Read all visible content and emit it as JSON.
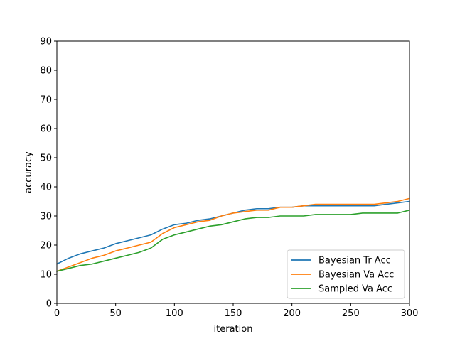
{
  "chart_data": {
    "type": "line",
    "title": "",
    "xlabel": "iteration",
    "ylabel": "accuracy",
    "xlim": [
      0,
      300
    ],
    "ylim": [
      0,
      90
    ],
    "xticks": [
      0,
      50,
      100,
      150,
      200,
      250,
      300
    ],
    "yticks": [
      0,
      10,
      20,
      30,
      40,
      50,
      60,
      70,
      80,
      90
    ],
    "grid": false,
    "legend_position": "lower-right",
    "x": [
      0,
      10,
      20,
      30,
      40,
      50,
      60,
      70,
      80,
      90,
      100,
      110,
      120,
      130,
      140,
      150,
      160,
      170,
      180,
      190,
      200,
      210,
      220,
      230,
      240,
      250,
      260,
      270,
      280,
      290,
      300
    ],
    "series": [
      {
        "name": "Bayesian Tr Acc",
        "color": "#1f77b4",
        "values": [
          13.5,
          15.5,
          17,
          18,
          19,
          20.5,
          21.5,
          22.5,
          23.5,
          25.5,
          27,
          27.5,
          28.5,
          29,
          30,
          31,
          32,
          32.5,
          32.5,
          33,
          33,
          33.5,
          33.5,
          33.5,
          33.5,
          33.5,
          33.5,
          33.5,
          34,
          34.5,
          35
        ]
      },
      {
        "name": "Bayesian Va Acc",
        "color": "#ff7f0e",
        "values": [
          11,
          12.5,
          14,
          15.5,
          16.5,
          18,
          19,
          20,
          21,
          24,
          26,
          27,
          28,
          28.5,
          30,
          31,
          31.5,
          32,
          32,
          33,
          33,
          33.5,
          34,
          34,
          34,
          34,
          34,
          34,
          34.5,
          35,
          36
        ]
      },
      {
        "name": "Sampled Va Acc",
        "color": "#2ca02c",
        "values": [
          11,
          12,
          13,
          13.5,
          14.5,
          15.5,
          16.5,
          17.5,
          19,
          22,
          23.5,
          24.5,
          25.5,
          26.5,
          27,
          28,
          29,
          29.5,
          29.5,
          30,
          30,
          30,
          30.5,
          30.5,
          30.5,
          30.5,
          31,
          31,
          31,
          31,
          32
        ]
      }
    ]
  }
}
